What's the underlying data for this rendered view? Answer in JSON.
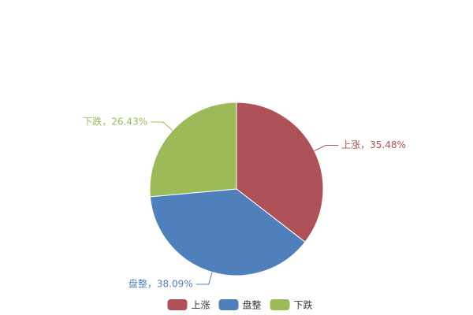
{
  "chart_data": {
    "type": "pie",
    "categories": [
      "上涨",
      "盘整",
      "下跌"
    ],
    "values": [
      35.48,
      38.09,
      26.43
    ],
    "value_labels": [
      "上涨，35.48%",
      "盘整，38.09%",
      "下跌，26.43%"
    ],
    "colors": [
      "#af5257",
      "#4f80bc",
      "#9bbb59"
    ],
    "legend": "bottom"
  }
}
